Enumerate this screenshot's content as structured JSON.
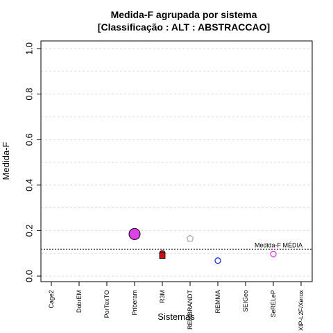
{
  "chart_data": {
    "type": "scatter",
    "title": "Medida-F agrupada por sistema",
    "subtitle": "[Classificação : ALT : ABSTRACCAO]",
    "xlabel": "Sistemas",
    "ylabel": "Medida-F",
    "ylim": [
      0,
      1.0
    ],
    "y_ticks": [
      "0.0",
      "0.2",
      "0.4",
      "0.6",
      "0.8",
      "1.0"
    ],
    "y_tick_values": [
      0,
      0.2,
      0.4,
      0.6,
      0.8,
      1.0
    ],
    "categories": [
      "Cage2",
      "DobrEM",
      "PorTexTO",
      "Priberam",
      "R3M",
      "REMBRANDT",
      "REMMA",
      "SEIGeo",
      "SeRELeP",
      "XIP-L2F/Xerox"
    ],
    "grid": true,
    "reference_line": {
      "label": "Medida-F MÉDIA",
      "value": 0.118
    },
    "points": [
      {
        "category": "Priberam",
        "value": 0.185,
        "shape": "circle",
        "size": "large",
        "color": "#e040e8"
      },
      {
        "category": "R3M",
        "value": 0.1,
        "shape": "circle",
        "size": "small",
        "color": "#d01010"
      },
      {
        "category": "R3M",
        "value": 0.09,
        "shape": "square",
        "size": "small",
        "color": "#d01010"
      },
      {
        "category": "REMBRANDT",
        "value": 0.165,
        "shape": "pentagon",
        "size": "small",
        "color": "#aaaaaa"
      },
      {
        "category": "REMMA",
        "value": 0.068,
        "shape": "circle-open",
        "size": "small",
        "color": "#2233dd"
      },
      {
        "category": "SeRELeP",
        "value": 0.097,
        "shape": "circle-open",
        "size": "small",
        "color": "#e040e8"
      }
    ]
  }
}
